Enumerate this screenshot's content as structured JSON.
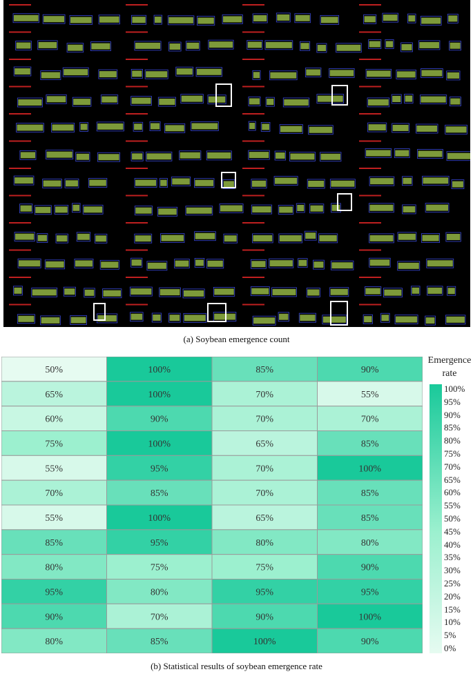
{
  "figure": {
    "caption_a": "(a) Soybean emergence count",
    "caption_b": "(b) Statistical results of soybean emergence rate"
  },
  "chart_data": {
    "type": "heatmap",
    "title": "",
    "colorbar_label": "Emergence rate",
    "colorbar_ticks": [
      "100%",
      "95%",
      "90%",
      "85%",
      "80%",
      "75%",
      "70%",
      "65%",
      "60%",
      "55%",
      "50%",
      "45%",
      "40%",
      "35%",
      "30%",
      "25%",
      "20%",
      "15%",
      "10%",
      "5%",
      "0%"
    ],
    "value_range": [
      0,
      100
    ],
    "grid": true,
    "legend_placement": "right",
    "rows": 12,
    "cols": 4,
    "values": [
      [
        50,
        100,
        85,
        90
      ],
      [
        65,
        100,
        70,
        55
      ],
      [
        60,
        90,
        70,
        70
      ],
      [
        75,
        100,
        65,
        85
      ],
      [
        55,
        95,
        70,
        100
      ],
      [
        70,
        85,
        70,
        85
      ],
      [
        55,
        100,
        65,
        85
      ],
      [
        85,
        95,
        80,
        80
      ],
      [
        80,
        75,
        75,
        90
      ],
      [
        95,
        80,
        95,
        95
      ],
      [
        90,
        70,
        90,
        100
      ],
      [
        80,
        85,
        100,
        90
      ]
    ],
    "colors": {
      "low": "#e6fbf1",
      "mid": "#9cf0cf",
      "high": "#19c99a",
      "text": "#333333",
      "border": "#9a9a9a"
    }
  }
}
